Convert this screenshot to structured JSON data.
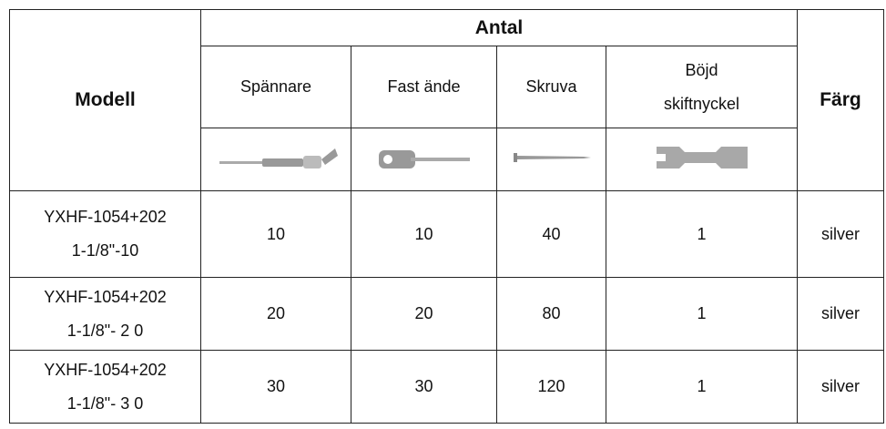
{
  "table": {
    "headers": {
      "model": "Modell",
      "quantity": "Antal",
      "color": "Färg",
      "items": [
        [
          "Spännare"
        ],
        [
          "Fast ände"
        ],
        [
          "Skruva"
        ],
        [
          "Böjd",
          "skiftnyckel"
        ]
      ]
    },
    "rows": [
      {
        "model": [
          "YXHF-1054+202",
          "1-1/8\"-10"
        ],
        "quantities": [
          10,
          10,
          40,
          1
        ],
        "color": "silver"
      },
      {
        "model": [
          "YXHF-1054+202",
          "1-1/8\"- 2 0"
        ],
        "quantities": [
          20,
          20,
          80,
          1
        ],
        "color": "silver"
      },
      {
        "model": [
          "YXHF-1054+202",
          "1-1/8\"- 3 0"
        ],
        "quantities": [
          30,
          30,
          120,
          1
        ],
        "color": "silver"
      }
    ]
  }
}
